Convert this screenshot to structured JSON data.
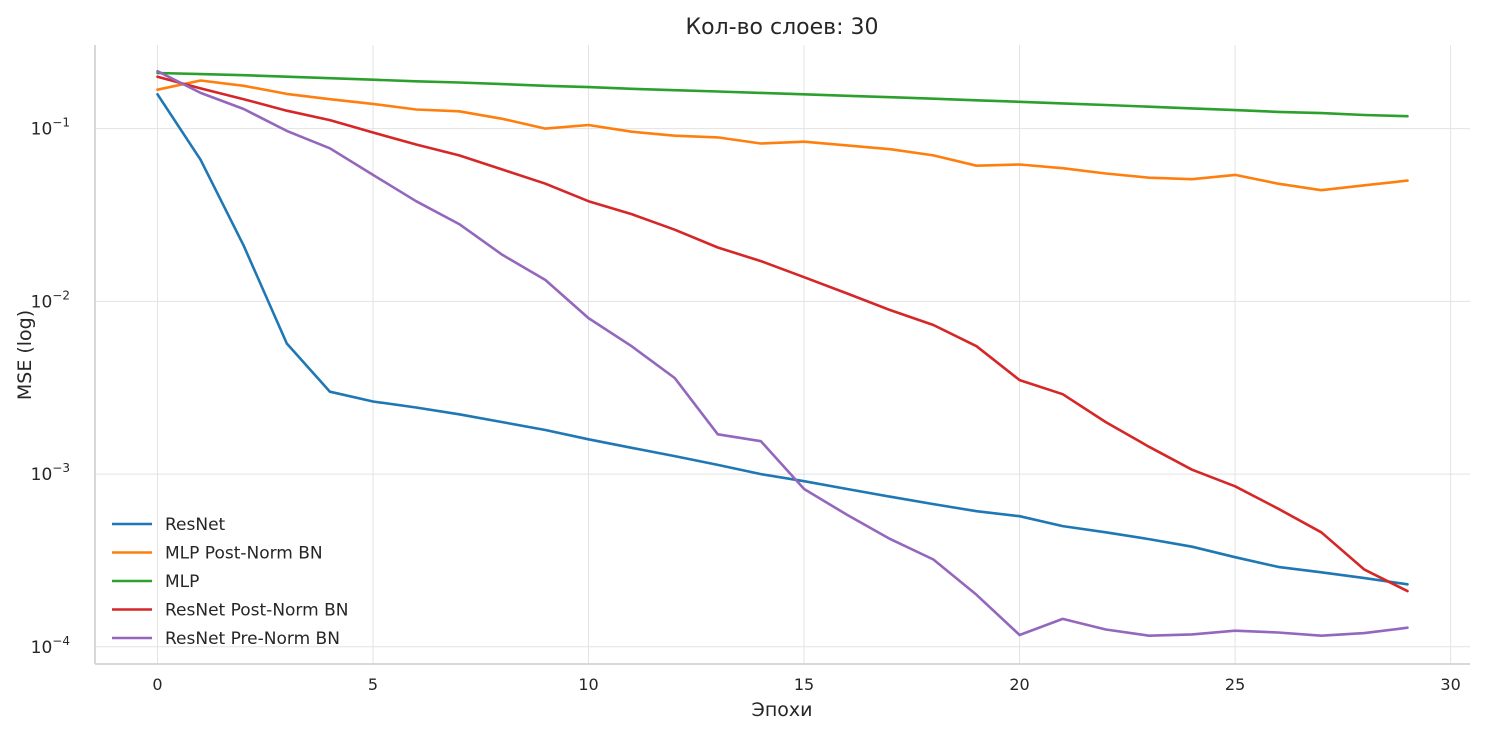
{
  "chart_data": {
    "type": "line",
    "title": "Кол-во слоев: 30",
    "xlabel": "Эпохи",
    "ylabel": "MSE (log)",
    "x_scale": "linear",
    "y_scale": "log",
    "xlim": [
      -1.45,
      30.45
    ],
    "ylim": [
      7.95e-05,
      0.305
    ],
    "x_ticks": [
      0,
      5,
      10,
      15,
      20,
      25,
      30
    ],
    "x_tick_labels": [
      "0",
      "5",
      "10",
      "15",
      "20",
      "25",
      "30"
    ],
    "y_ticks": [
      0.0001,
      0.001,
      0.01,
      0.1
    ],
    "y_tick_labels": [
      {
        "base": "10",
        "exp": "−4"
      },
      {
        "base": "10",
        "exp": "−3"
      },
      {
        "base": "10",
        "exp": "−2"
      },
      {
        "base": "10",
        "exp": "−1"
      }
    ],
    "grid": true,
    "legend_position": "lower-left",
    "x": [
      0,
      1,
      2,
      3,
      4,
      5,
      6,
      7,
      8,
      9,
      10,
      11,
      12,
      13,
      14,
      15,
      16,
      17,
      18,
      19,
      20,
      21,
      22,
      23,
      24,
      25,
      26,
      27,
      28,
      29
    ],
    "series": [
      {
        "name": "ResNet",
        "color": "#1f77b4",
        "values": [
          0.158,
          0.066,
          0.021,
          0.0057,
          0.003,
          0.00263,
          0.00243,
          0.00222,
          0.002,
          0.0018,
          0.00159,
          0.00142,
          0.00127,
          0.00113,
          0.001,
          0.00091,
          0.00082,
          0.00074,
          0.00067,
          0.00061,
          0.00057,
          0.0005,
          0.00046,
          0.00042,
          0.00038,
          0.00033,
          0.00029,
          0.00027,
          0.00025,
          0.00023
        ]
      },
      {
        "name": "MLP  Post-Norm BN",
        "color": "#ff7f0e",
        "values": [
          0.168,
          0.19,
          0.177,
          0.159,
          0.148,
          0.139,
          0.129,
          0.126,
          0.114,
          0.1,
          0.105,
          0.096,
          0.091,
          0.089,
          0.082,
          0.084,
          0.08,
          0.076,
          0.07,
          0.061,
          0.062,
          0.059,
          0.055,
          0.052,
          0.051,
          0.054,
          0.048,
          0.044,
          0.047,
          0.05
        ]
      },
      {
        "name": "MLP",
        "color": "#2ca02c",
        "values": [
          0.21,
          0.207,
          0.204,
          0.2,
          0.196,
          0.192,
          0.188,
          0.185,
          0.181,
          0.177,
          0.174,
          0.17,
          0.167,
          0.164,
          0.161,
          0.158,
          0.155,
          0.152,
          0.149,
          0.146,
          0.143,
          0.14,
          0.137,
          0.134,
          0.131,
          0.128,
          0.125,
          0.123,
          0.12,
          0.118
        ]
      },
      {
        "name": "ResNet  Post-Norm BN",
        "color": "#d62728",
        "values": [
          0.2,
          0.171,
          0.148,
          0.127,
          0.112,
          0.095,
          0.081,
          0.07,
          0.058,
          0.048,
          0.038,
          0.032,
          0.026,
          0.0205,
          0.0171,
          0.0138,
          0.0111,
          0.0089,
          0.0073,
          0.0055,
          0.0035,
          0.0029,
          0.002,
          0.00144,
          0.00106,
          0.00085,
          0.00063,
          0.00046,
          0.00028,
          0.00021
        ]
      },
      {
        "name": "ResNet  Pre-Norm BN",
        "color": "#9467bd",
        "values": [
          0.215,
          0.161,
          0.13,
          0.097,
          0.077,
          0.054,
          0.038,
          0.028,
          0.0186,
          0.0133,
          0.008,
          0.0055,
          0.0036,
          0.0017,
          0.00155,
          0.00082,
          0.00058,
          0.00042,
          0.00032,
          0.0002,
          0.000117,
          0.000145,
          0.000126,
          0.000116,
          0.000118,
          0.000124,
          0.000121,
          0.000116,
          0.00012,
          0.000129
        ]
      }
    ]
  }
}
